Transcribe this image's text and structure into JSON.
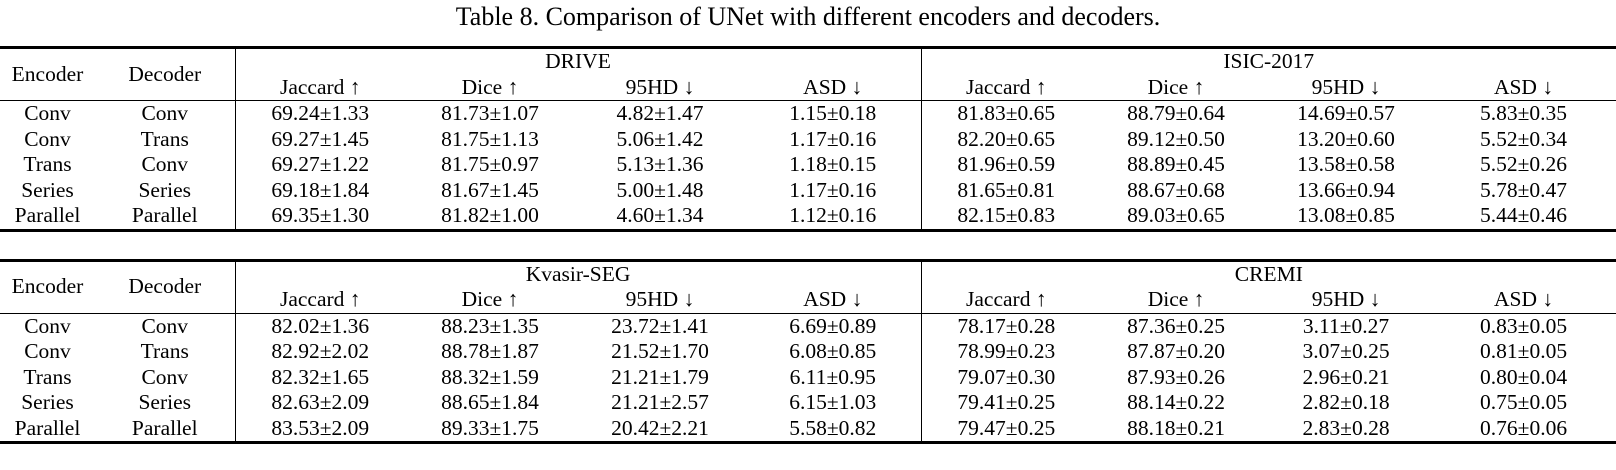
{
  "caption": "Table 8. Comparison of UNet with different encoders and decoders.",
  "col_headers": {
    "encoder": "Encoder",
    "decoder": "Decoder",
    "metrics": [
      "Jaccard ↑",
      "Dice ↑",
      "95HD ↓",
      "ASD ↓"
    ]
  },
  "tables": [
    {
      "datasets": [
        "DRIVE",
        "ISIC-2017"
      ],
      "rows": [
        {
          "encoder": "Conv",
          "decoder": "Conv",
          "cells": [
            "69.24±1.33",
            "81.73±1.07",
            "4.82±1.47",
            "1.15±0.18",
            "81.83±0.65",
            "88.79±0.64",
            "14.69±0.57",
            "5.83±0.35"
          ],
          "bold": [
            false,
            false,
            false,
            false,
            false,
            false,
            false,
            false
          ]
        },
        {
          "encoder": "Conv",
          "decoder": "Trans",
          "cells": [
            "69.27±1.45",
            "81.75±1.13",
            "5.06±1.42",
            "1.17±0.16",
            "82.20±0.65",
            "89.12±0.50",
            "13.20±0.60",
            "5.52±0.34"
          ],
          "bold": [
            false,
            false,
            false,
            false,
            true,
            true,
            false,
            false
          ]
        },
        {
          "encoder": "Trans",
          "decoder": "Conv",
          "cells": [
            "69.27±1.22",
            "81.75±0.97",
            "5.13±1.36",
            "1.18±0.15",
            "81.96±0.59",
            "88.89±0.45",
            "13.58±0.58",
            "5.52±0.26"
          ],
          "bold": [
            false,
            false,
            false,
            false,
            false,
            false,
            false,
            false
          ]
        },
        {
          "encoder": "Series",
          "decoder": "Series",
          "cells": [
            "69.18±1.84",
            "81.67±1.45",
            "5.00±1.48",
            "1.17±0.16",
            "81.65±0.81",
            "88.67±0.68",
            "13.66±0.94",
            "5.78±0.47"
          ],
          "bold": [
            false,
            false,
            false,
            false,
            false,
            false,
            false,
            false
          ]
        },
        {
          "encoder": "Parallel",
          "decoder": "Parallel",
          "cells": [
            "69.35±1.30",
            "81.82±1.00",
            "4.60±1.34",
            "1.12±0.16",
            "82.15±0.83",
            "89.03±0.65",
            "13.08±0.85",
            "5.44±0.46"
          ],
          "bold": [
            true,
            true,
            true,
            true,
            false,
            false,
            true,
            true
          ]
        }
      ]
    },
    {
      "datasets": [
        "Kvasir-SEG",
        "CREMI"
      ],
      "rows": [
        {
          "encoder": "Conv",
          "decoder": "Conv",
          "cells": [
            "82.02±1.36",
            "88.23±1.35",
            "23.72±1.41",
            "6.69±0.89",
            "78.17±0.28",
            "87.36±0.25",
            "3.11±0.27",
            "0.83±0.05"
          ],
          "bold": [
            false,
            false,
            false,
            false,
            false,
            false,
            false,
            false
          ]
        },
        {
          "encoder": "Conv",
          "decoder": "Trans",
          "cells": [
            "82.92±2.02",
            "88.78±1.87",
            "21.52±1.70",
            "6.08±0.85",
            "78.99±0.23",
            "87.87±0.20",
            "3.07±0.25",
            "0.81±0.05"
          ],
          "bold": [
            false,
            false,
            false,
            false,
            false,
            false,
            false,
            false
          ]
        },
        {
          "encoder": "Trans",
          "decoder": "Conv",
          "cells": [
            "82.32±1.65",
            "88.32±1.59",
            "21.21±1.79",
            "6.11±0.95",
            "79.07±0.30",
            "87.93±0.26",
            "2.96±0.21",
            "0.80±0.04"
          ],
          "bold": [
            false,
            false,
            false,
            false,
            false,
            false,
            false,
            false
          ]
        },
        {
          "encoder": "Series",
          "decoder": "Series",
          "cells": [
            "82.63±2.09",
            "88.65±1.84",
            "21.21±2.57",
            "6.15±1.03",
            "79.41±0.25",
            "88.14±0.22",
            "2.82±0.18",
            "0.75±0.05"
          ],
          "bold": [
            false,
            false,
            false,
            false,
            false,
            false,
            true,
            true
          ]
        },
        {
          "encoder": "Parallel",
          "decoder": "Parallel",
          "cells": [
            "83.53±2.09",
            "89.33±1.75",
            "20.42±2.21",
            "5.58±0.82",
            "79.47±0.25",
            "88.18±0.21",
            "2.83±0.28",
            "0.76±0.06"
          ],
          "bold": [
            true,
            true,
            true,
            true,
            true,
            true,
            false,
            false
          ]
        }
      ]
    }
  ]
}
